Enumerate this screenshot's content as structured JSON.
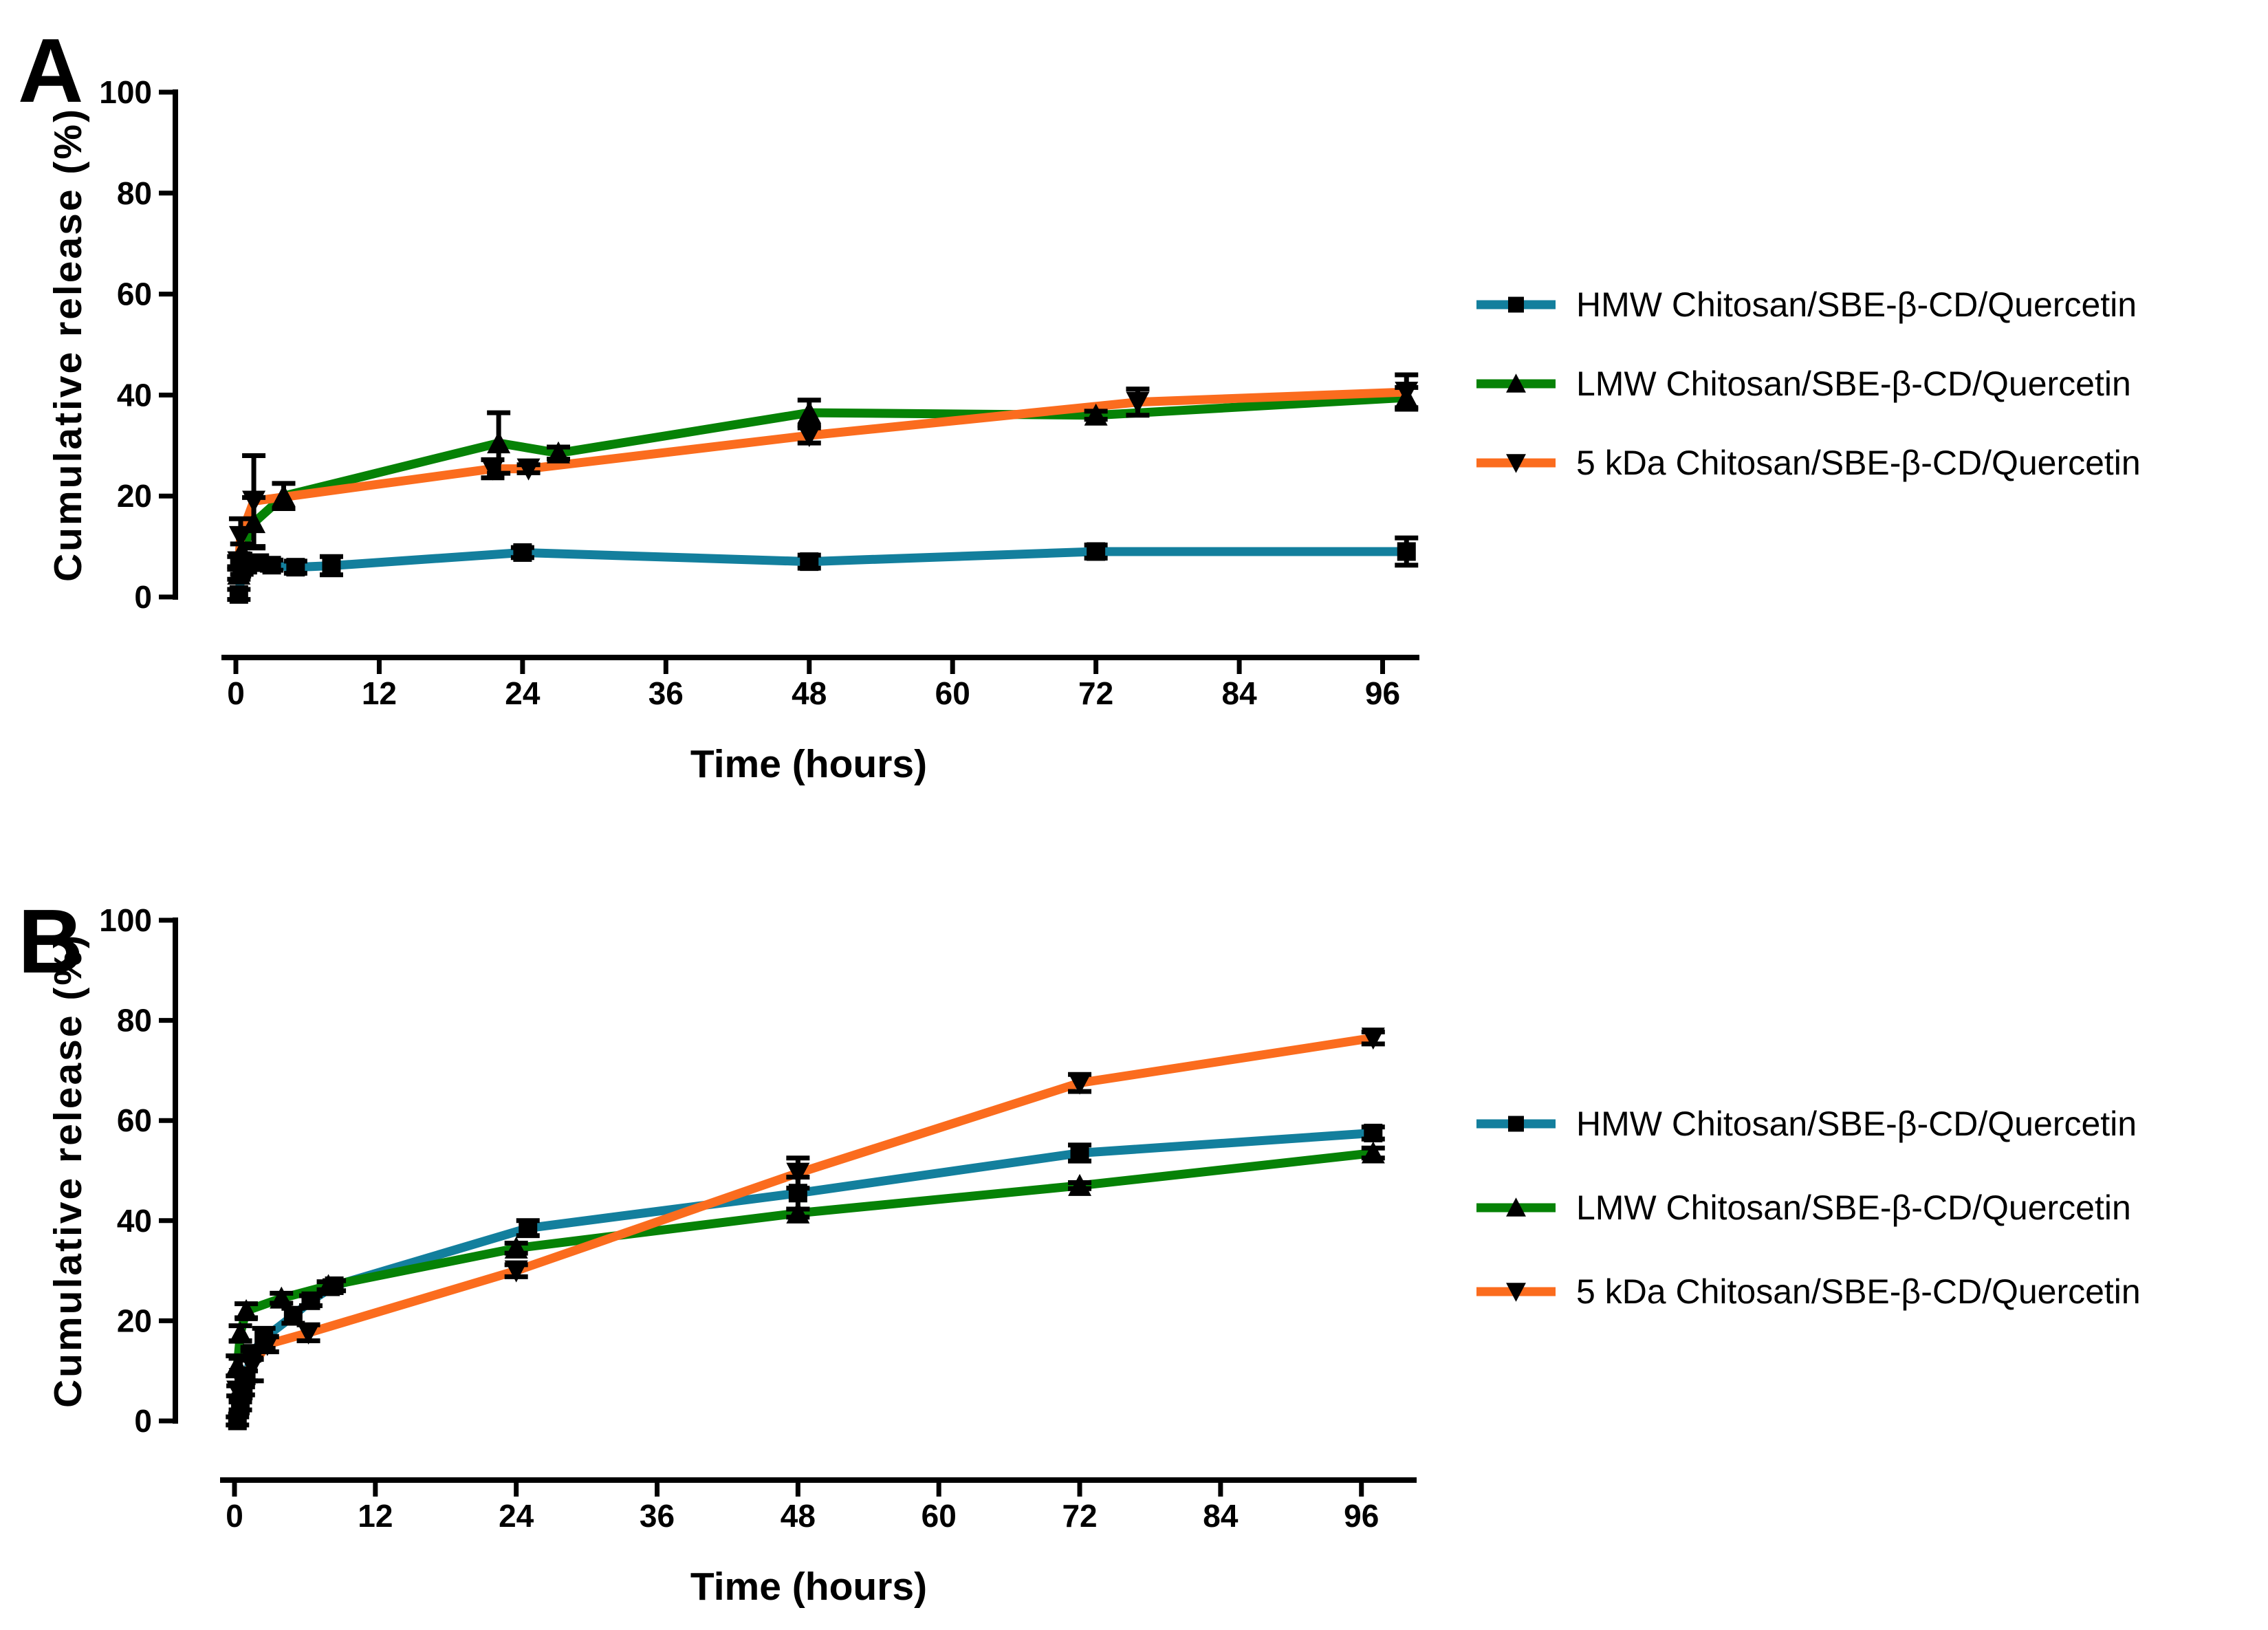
{
  "figure": {
    "panels": [
      {
        "letter": "A"
      },
      {
        "letter": "B"
      }
    ]
  },
  "chart_data": [
    {
      "type": "line",
      "panel": "A",
      "title": "",
      "xlabel": "Time (hours)",
      "ylabel": "Cumulative release (%)",
      "xlim": [
        0,
        102
      ],
      "ylim": [
        0,
        100
      ],
      "x_ticks": [
        0,
        12,
        24,
        36,
        48,
        60,
        72,
        84,
        96
      ],
      "y_ticks": [
        0,
        20,
        40,
        60,
        80,
        100
      ],
      "grid": false,
      "legend_position": "right",
      "series": [
        {
          "name": "HMW Chitosan/SBE-β-CD/Quercetin",
          "color": "#137F9D",
          "marker": "square",
          "x": [
            0.25,
            0.5,
            1,
            2,
            3,
            5,
            8,
            24,
            48,
            72,
            98
          ],
          "y": [
            0.5,
            5.5,
            6.3,
            6.8,
            6.3,
            5.9,
            6.2,
            8.8,
            7.0,
            9.0,
            9.0
          ],
          "err": [
            1.0,
            1.0,
            0.8,
            0.8,
            1.0,
            1.2,
            1.8,
            1.0,
            1.3,
            1.3,
            2.7
          ]
        },
        {
          "name": "LMW Chitosan/SBE-β-CD/Quercetin",
          "color": "#068206",
          "marker": "triangle-up",
          "x": [
            0.25,
            0.5,
            1.5,
            4,
            22,
            27,
            48,
            72,
            98
          ],
          "y": [
            4.5,
            9.0,
            14.7,
            20.0,
            30.5,
            28.5,
            36.5,
            36.0,
            39.5
          ],
          "err": [
            1.0,
            1.5,
            5.0,
            2.5,
            6.0,
            1.2,
            2.5,
            0.8,
            2.0
          ]
        },
        {
          "name": "5 kDa Chitosan/SBE-β-CD/Quercetin",
          "color": "#FB6C1E",
          "marker": "triangle-down",
          "x": [
            0.25,
            0.4,
            1.5,
            21.5,
            24.5,
            48,
            75.5,
            98
          ],
          "y": [
            7.0,
            12.0,
            19.0,
            25.4,
            25.4,
            32.0,
            38.6,
            40.6
          ],
          "err": [
            1.0,
            3.5,
            9.0,
            1.8,
            0.8,
            1.5,
            2.6,
            3.4
          ]
        }
      ]
    },
    {
      "type": "line",
      "panel": "B",
      "title": "",
      "xlabel": "Time (hours)",
      "ylabel": "Cumulative release (%)",
      "xlim": [
        0,
        102
      ],
      "ylim": [
        0,
        100
      ],
      "x_ticks": [
        0,
        12,
        24,
        36,
        48,
        60,
        72,
        84,
        96
      ],
      "y_ticks": [
        0,
        20,
        40,
        60,
        80,
        100
      ],
      "grid": false,
      "legend_position": "right",
      "series": [
        {
          "name": "HMW Chitosan/SBE-β-CD/Quercetin",
          "color": "#137F9D",
          "marker": "square",
          "x": [
            0.25,
            0.5,
            0.75,
            1,
            1.5,
            2.5,
            5,
            6.5,
            8.5,
            25,
            48,
            72,
            97
          ],
          "y": [
            0.0,
            3.0,
            6.0,
            9.0,
            13.5,
            16.5,
            21.0,
            24.0,
            27.0,
            38.5,
            45.5,
            53.5,
            57.5
          ],
          "err": [
            0.8,
            0.8,
            0.8,
            1.0,
            1.2,
            2.0,
            1.5,
            1.0,
            1.0,
            1.5,
            3.2,
            1.6,
            1.2
          ]
        },
        {
          "name": "LMW Chitosan/SBE-β-CD/Quercetin",
          "color": "#068206",
          "marker": "triangle-up",
          "x": [
            0.25,
            0.5,
            1,
            4,
            8,
            24,
            48,
            72,
            97
          ],
          "y": [
            11.0,
            17.5,
            22.0,
            24.5,
            27.0,
            34.5,
            41.5,
            47.0,
            53.5
          ],
          "err": [
            2.0,
            1.5,
            1.4,
            1.0,
            0.8,
            1.0,
            0.8,
            0.6,
            1.0
          ]
        },
        {
          "name": "5 kDa Chitosan/SBE-β-CD/Quercetin",
          "color": "#FB6C1E",
          "marker": "triangle-down",
          "x": [
            0.3,
            0.5,
            1.5,
            2.8,
            6.3,
            24,
            48,
            72,
            97
          ],
          "y": [
            6.0,
            8.5,
            11.0,
            15.3,
            17.6,
            30.0,
            49.5,
            67.5,
            76.5
          ],
          "err": [
            1.0,
            4.0,
            3.0,
            1.5,
            1.6,
            1.2,
            3.0,
            1.7,
            1.2
          ]
        }
      ]
    }
  ]
}
